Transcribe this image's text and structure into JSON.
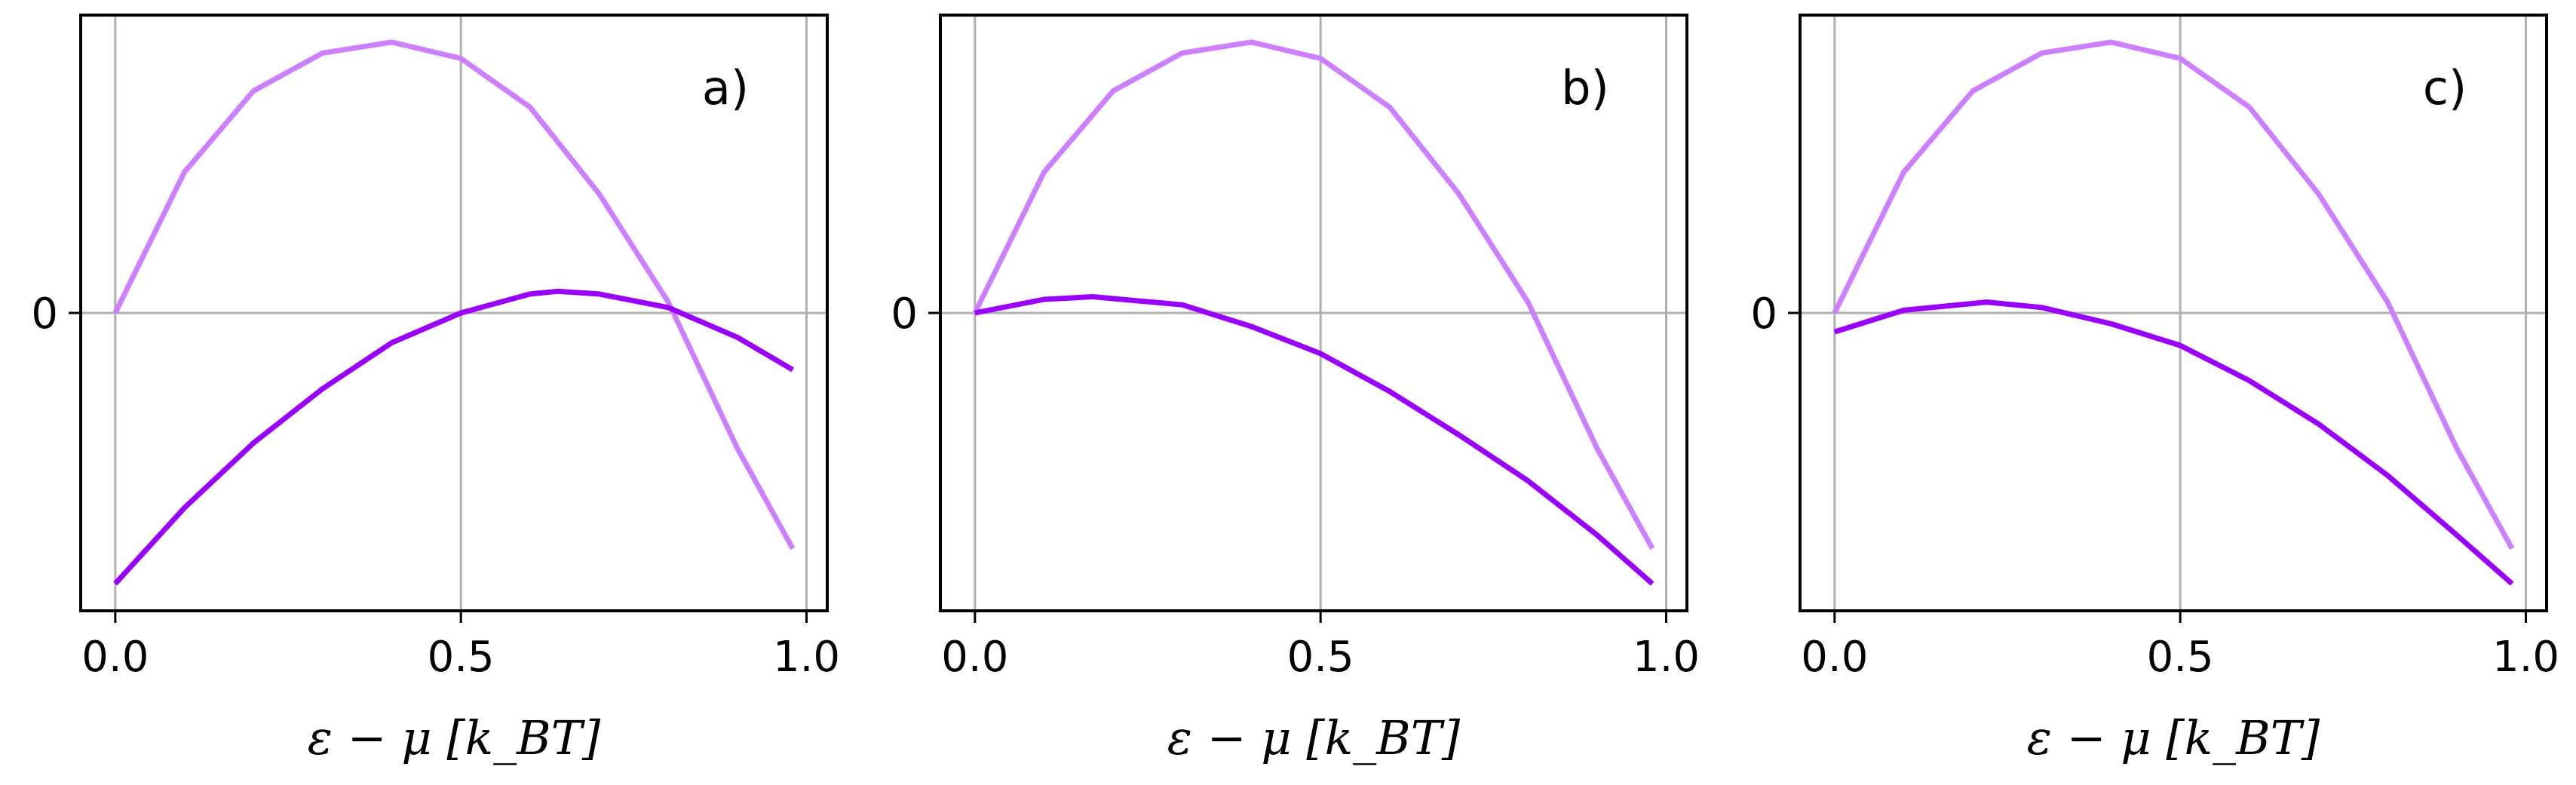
{
  "chart_data": [
    {
      "type": "line",
      "panel_label": "a)",
      "xlabel": "ε − μ [k_BT]",
      "xlim": [
        -0.05,
        1.03
      ],
      "ylim": [
        -1.1,
        1.1
      ],
      "xticks": [
        0.0,
        0.5,
        1.0
      ],
      "xtick_labels": [
        "0.0",
        "0.5",
        "1.0"
      ],
      "yticks": [
        0
      ],
      "ytick_labels": [
        "0"
      ],
      "grid": true,
      "series": [
        {
          "color": "#cc80ff",
          "x": [
            0.0,
            0.1,
            0.2,
            0.3,
            0.4,
            0.5,
            0.6,
            0.7,
            0.8,
            0.9,
            0.98
          ],
          "y": [
            0.0,
            0.52,
            0.82,
            0.96,
            1.0,
            0.94,
            0.76,
            0.44,
            0.04,
            -0.5,
            -0.87
          ]
        },
        {
          "color": "#9900ff",
          "x": [
            0.0,
            0.1,
            0.2,
            0.3,
            0.4,
            0.5,
            0.6,
            0.64,
            0.7,
            0.8,
            0.9,
            0.98
          ],
          "y": [
            -1.0,
            -0.72,
            -0.48,
            -0.28,
            -0.11,
            0.0,
            0.07,
            0.08,
            0.07,
            0.02,
            -0.09,
            -0.21
          ]
        }
      ]
    },
    {
      "type": "line",
      "panel_label": "b)",
      "xlabel": "ε − μ [k_BT]",
      "xlim": [
        -0.05,
        1.03
      ],
      "ylim": [
        -1.1,
        1.1
      ],
      "xticks": [
        0.0,
        0.5,
        1.0
      ],
      "xtick_labels": [
        "0.0",
        "0.5",
        "1.0"
      ],
      "yticks": [
        0
      ],
      "ytick_labels": [
        "0"
      ],
      "grid": true,
      "series": [
        {
          "color": "#cc80ff",
          "x": [
            0.0,
            0.1,
            0.2,
            0.3,
            0.4,
            0.5,
            0.6,
            0.7,
            0.8,
            0.9,
            0.98
          ],
          "y": [
            0.0,
            0.52,
            0.82,
            0.96,
            1.0,
            0.94,
            0.76,
            0.44,
            0.04,
            -0.5,
            -0.87
          ]
        },
        {
          "color": "#9900ff",
          "x": [
            0.0,
            0.1,
            0.17,
            0.3,
            0.4,
            0.5,
            0.6,
            0.7,
            0.8,
            0.9,
            0.98
          ],
          "y": [
            0.0,
            0.05,
            0.06,
            0.03,
            -0.05,
            -0.15,
            -0.29,
            -0.45,
            -0.62,
            -0.82,
            -1.0
          ]
        }
      ]
    },
    {
      "type": "line",
      "panel_label": "c)",
      "xlabel": "ε − μ [k_BT]",
      "xlim": [
        -0.05,
        1.03
      ],
      "ylim": [
        -1.1,
        1.1
      ],
      "xticks": [
        0.0,
        0.5,
        1.0
      ],
      "xtick_labels": [
        "0.0",
        "0.5",
        "1.0"
      ],
      "yticks": [
        0
      ],
      "ytick_labels": [
        "0"
      ],
      "grid": true,
      "series": [
        {
          "color": "#cc80ff",
          "x": [
            0.0,
            0.1,
            0.2,
            0.3,
            0.4,
            0.5,
            0.6,
            0.7,
            0.8,
            0.9,
            0.98
          ],
          "y": [
            0.0,
            0.52,
            0.82,
            0.96,
            1.0,
            0.94,
            0.76,
            0.44,
            0.04,
            -0.5,
            -0.87
          ]
        },
        {
          "color": "#9900ff",
          "x": [
            0.0,
            0.1,
            0.22,
            0.3,
            0.4,
            0.5,
            0.6,
            0.7,
            0.8,
            0.9,
            0.98
          ],
          "y": [
            -0.07,
            0.01,
            0.04,
            0.02,
            -0.04,
            -0.12,
            -0.25,
            -0.41,
            -0.6,
            -0.82,
            -1.0
          ]
        }
      ]
    }
  ]
}
